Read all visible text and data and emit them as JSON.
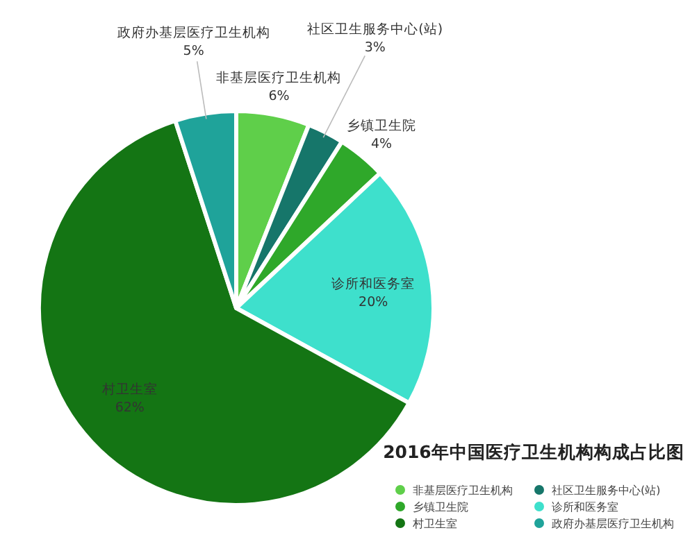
{
  "chart_data": {
    "type": "pie",
    "title": "2016年中国医疗卫生机构构成占比图",
    "categories": [
      "非基层医疗卫生机构",
      "社区卫生服务中心(站)",
      "乡镇卫生院",
      "诊所和医务室",
      "村卫生室",
      "政府办基层医疗卫生机构"
    ],
    "values": [
      6,
      3,
      4,
      20,
      62,
      5
    ],
    "colors": [
      "#5fcf4a",
      "#16766a",
      "#2fa82a",
      "#3ee0cc",
      "#147514",
      "#1fa39a"
    ],
    "value_labels": [
      "6%",
      "3%",
      "4%",
      "20%",
      "62%",
      "5%"
    ],
    "legend": "bottom right"
  }
}
